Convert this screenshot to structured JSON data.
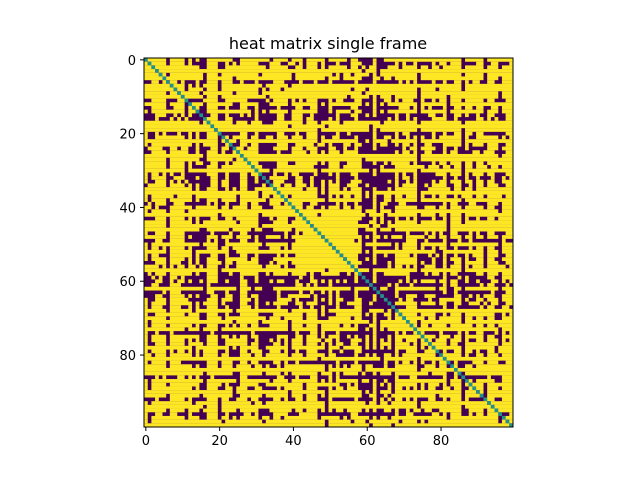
{
  "chart_data": {
    "type": "heatmap",
    "title": "heat matrix single frame",
    "xlabel": "",
    "ylabel": "",
    "rows": 100,
    "cols": 100,
    "xlim": [
      -0.5,
      99.5
    ],
    "ylim": [
      99.5,
      -0.5
    ],
    "xticks": [
      0,
      20,
      40,
      60,
      80
    ],
    "yticks": [
      0,
      20,
      40,
      60,
      80
    ],
    "xtick_labels": [
      "0",
      "20",
      "40",
      "60",
      "80"
    ],
    "ytick_labels": [
      "0",
      "20",
      "40",
      "60",
      "80"
    ],
    "value_levels": [
      0,
      0.5,
      1
    ],
    "colormap": "viridis",
    "colors": {
      "low": "#440154",
      "mid": "#21918c",
      "high": "#fde725"
    },
    "diagonal_value": 0.5,
    "grid": false,
    "matrix": "100x100 symmetric binary matrix (0 = dark purple, 1 = yellow) with diagonal = 0.5 (teal); noisy pattern with a solid yellow block around rows/cols 43-56"
  }
}
